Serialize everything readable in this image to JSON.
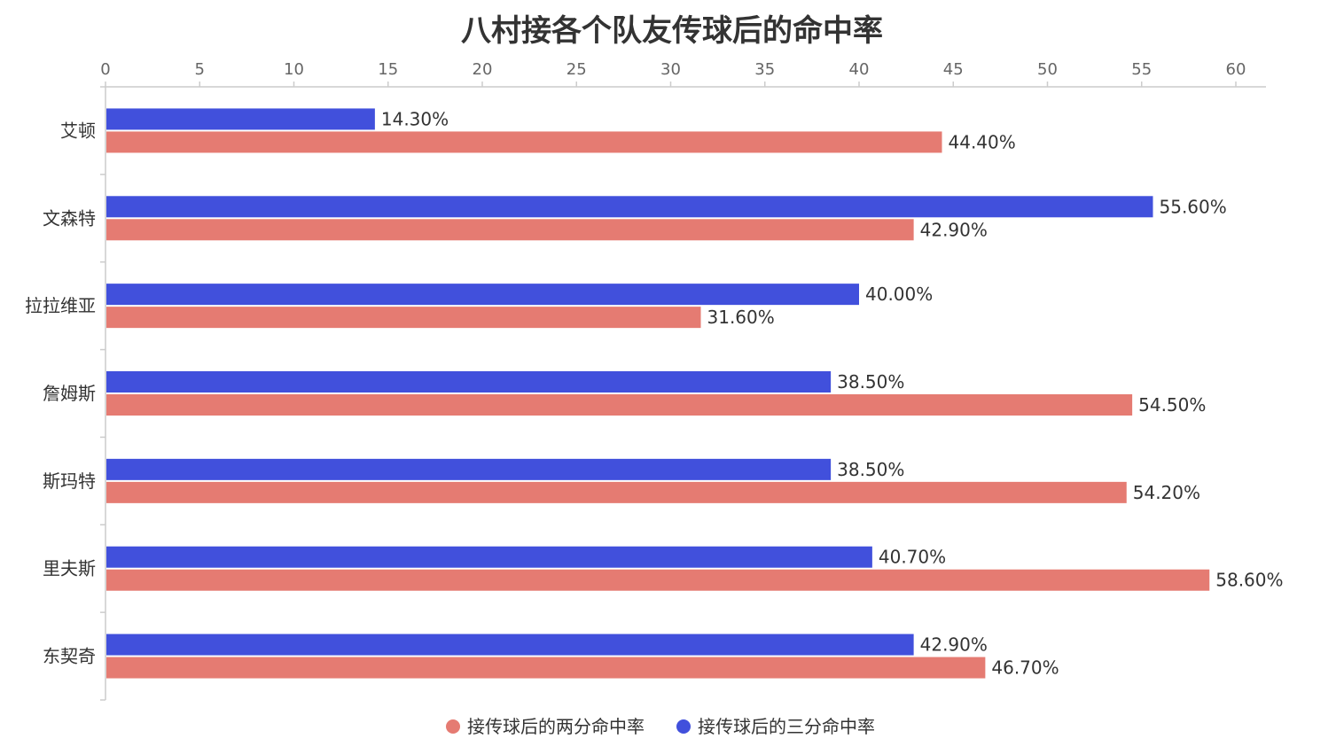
{
  "chart_data": {
    "type": "bar",
    "orientation": "horizontal",
    "title": "八村接各个队友传球后的命中率",
    "categories": [
      "艾顿",
      "文森特",
      "拉拉维亚",
      "詹姆斯",
      "斯玛特",
      "里夫斯",
      "东契奇"
    ],
    "series": [
      {
        "name": "接传球后的三分命中率",
        "color": "#4150dc",
        "values": [
          14.3,
          55.6,
          40.0,
          38.5,
          38.5,
          40.7,
          42.9
        ],
        "labels": [
          "14.30%",
          "55.60%",
          "40.00%",
          "38.50%",
          "38.50%",
          "40.70%",
          "42.90%"
        ]
      },
      {
        "name": "接传球后的两分命中率",
        "color": "#e57b72",
        "values": [
          44.4,
          42.9,
          31.6,
          54.5,
          54.2,
          58.6,
          46.7
        ],
        "labels": [
          "44.40%",
          "42.90%",
          "31.60%",
          "54.50%",
          "54.20%",
          "58.60%",
          "46.70%"
        ]
      }
    ],
    "xlim": [
      0,
      60
    ],
    "ticks": [
      "0",
      "5",
      "10",
      "15",
      "20",
      "25",
      "30",
      "35",
      "40",
      "45",
      "50",
      "55",
      "60"
    ],
    "xaxis_position": "top",
    "grid": false,
    "legend": {
      "position": "bottom",
      "items": [
        {
          "name": "接传球后的两分命中率",
          "color": "#e57b72"
        },
        {
          "name": "接传球后的三分命中率",
          "color": "#4150dc"
        }
      ]
    }
  }
}
